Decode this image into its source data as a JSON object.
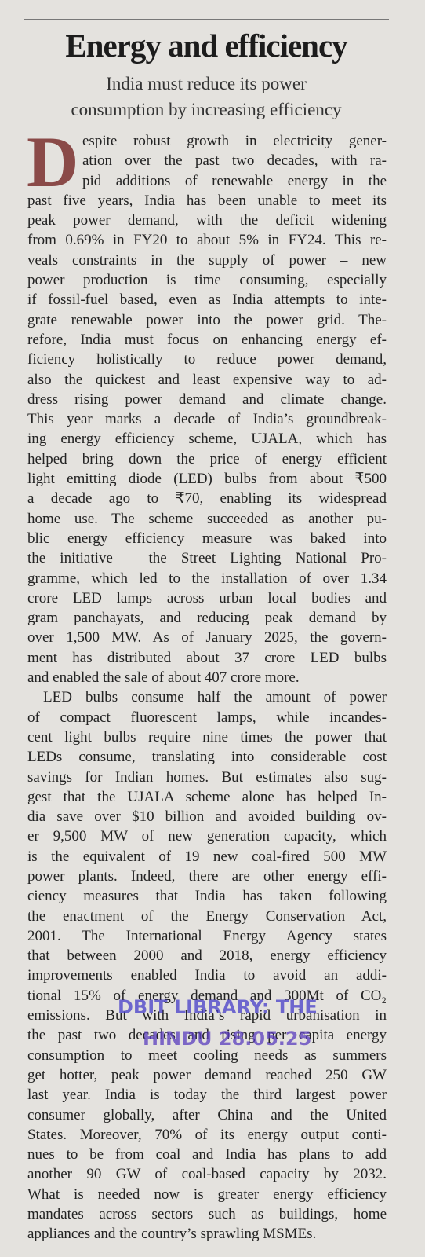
{
  "header": {
    "title": "Energy and efficiency",
    "subtitle_lines": [
      "India must reduce its power",
      "consumption by increasing efficiency"
    ]
  },
  "body": {
    "drop_cap": "D",
    "paragraphs": [
      {
        "lines": [
          "espite robust growth in electricity gener-",
          "ation over the past two decades, with ra-",
          "pid additions of renewable energy in the",
          "past five years, India has been unable to meet its",
          "peak power demand, with the deficit widening",
          "from 0.69% in FY20 to about 5% in FY24. This re-",
          "veals constraints in the supply of power – new",
          "power production is time consuming, especially",
          "if fossil-fuel based, even as India attempts to inte-",
          "grate renewable power into the power grid. The-",
          "refore, India must focus on enhancing energy ef-",
          "ficiency holistically to reduce power demand,",
          "also the quickest and least expensive way to ad-",
          "dress rising power demand and climate change.",
          "This year marks a decade of India’s groundbreak-",
          "ing energy efficiency scheme, UJALA, which has",
          "helped bring down the price of energy efficient",
          "light emitting diode (LED) bulbs from about ₹500",
          "a decade ago to ₹70, enabling its widespread",
          "home use. The scheme succeeded as another pu-",
          "blic energy efficiency measure was baked into",
          "the initiative – the Street Lighting National Pro-",
          "gramme, which led to the installation of over 1.34",
          "crore LED lamps across urban local bodies and",
          "gram panchayats, and reducing peak demand by",
          "over 1,500 MW. As of January 2025, the govern-",
          "ment has distributed about 37 crore LED bulbs",
          "and enabled the sale of about 407 crore more."
        ]
      },
      {
        "lines": [
          "LED bulbs consume half the amount of power",
          "of compact fluorescent lamps, while incandes-",
          "cent light bulbs require nine times the power that",
          "LEDs consume, translating into considerable cost",
          "savings for Indian homes. But estimates also sug-",
          "gest that the UJALA scheme alone has helped In-",
          "dia save over $10 billion and avoided building ov-",
          "er 9,500 MW of new generation capacity, which",
          "is the equivalent of 19 new coal-fired 500 MW",
          "power plants. Indeed, there are other energy effi-",
          "ciency measures that India has taken following",
          "the enactment of the Energy Conservation Act,",
          "2001. The International Energy Agency states",
          "that between 2000 and 2018, energy efficiency",
          "improvements enabled India to avoid an addi-",
          "tional 15% of energy demand and 300Mt of CO₂",
          "emissions. But with India’s rapid urbanisation in",
          "the past two decades and rising per capita energy",
          "consumption to meet cooling needs as summers",
          "get hotter, peak power demand reached 250 GW",
          "last year. India is today the third largest power",
          "consumer globally, after China and the United",
          "States. Moreover, 70% of its energy output conti-",
          "nues to be from coal and India has plans to add",
          "another 90 GW of coal-based capacity by 2032.",
          "What is needed now is greater energy efficiency",
          "mandates across sectors such as buildings, home",
          "appliances and the country’s sprawling MSMEs."
        ]
      }
    ]
  },
  "watermark": {
    "lines": [
      "DBIT LIBRARY: THE",
      "HINDU 28.05.25"
    ]
  }
}
